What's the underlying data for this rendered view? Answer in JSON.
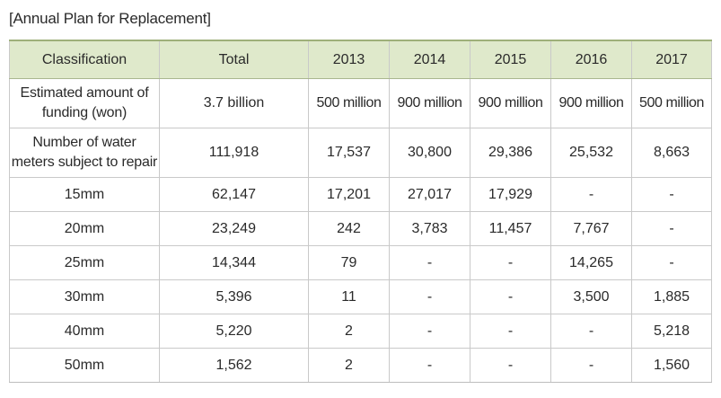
{
  "caption": "[Annual Plan for Replacement]",
  "table": {
    "headers": [
      "Classification",
      "Total",
      "2013",
      "2014",
      "2015",
      "2016",
      "2017"
    ],
    "rows": [
      [
        "Estimated amount of funding (won)",
        "3.7 billion",
        "500 million",
        "900 million",
        "900 million",
        "900 million",
        "500 million"
      ],
      [
        "Number of water meters subject to repair",
        "111,918",
        "17,537",
        "30,800",
        "29,386",
        "25,532",
        "8,663"
      ],
      [
        "15mm",
        "62,147",
        "17,201",
        "27,017",
        "17,929",
        "-",
        "-"
      ],
      [
        "20mm",
        "23,249",
        "242",
        "3,783",
        "11,457",
        "7,767",
        "-"
      ],
      [
        "25mm",
        "14,344",
        "79",
        "-",
        "-",
        "14,265",
        "-"
      ],
      [
        "30mm",
        "5,396",
        "11",
        "-",
        "-",
        "3,500",
        "1,885"
      ],
      [
        "40mm",
        "5,220",
        "2",
        "-",
        "-",
        "-",
        "5,218"
      ],
      [
        "50mm",
        "1,562",
        "2",
        "-",
        "-",
        "-",
        "1,560"
      ]
    ]
  }
}
